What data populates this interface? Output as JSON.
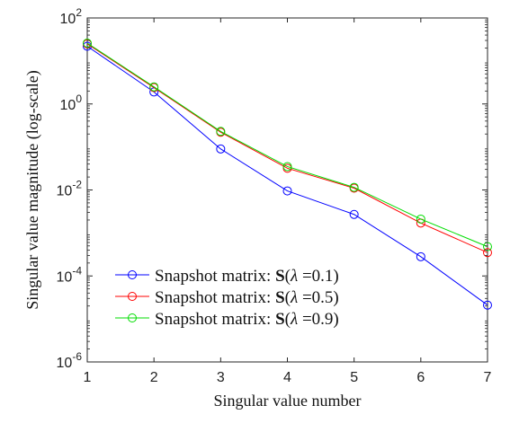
{
  "chart_data": {
    "type": "line",
    "xlabel": "Singular value number",
    "ylabel": "Singular value magnitude (log-scale)",
    "x": [
      1,
      2,
      3,
      4,
      5,
      6,
      7
    ],
    "xlim": [
      1,
      7
    ],
    "ylim": [
      1e-06,
      100
    ],
    "yscale": "log",
    "x_ticks": [
      "1",
      "2",
      "3",
      "4",
      "5",
      "6",
      "7"
    ],
    "y_ticks": [
      {
        "base": "10",
        "exp": "-6",
        "value": 1e-06
      },
      {
        "base": "10",
        "exp": "-4",
        "value": 0.0001
      },
      {
        "base": "10",
        "exp": "-2",
        "value": 0.01
      },
      {
        "base": "10",
        "exp": "0",
        "value": 1
      },
      {
        "base": "10",
        "exp": "2",
        "value": 100
      }
    ],
    "grid": false,
    "legend_position": "bottom-left",
    "series": [
      {
        "name": "Snapshot matrix: S(λ=0.1)",
        "legend_prefix": "Snapshot matrix: ",
        "legend_symbol": "S",
        "legend_lambda": "λ",
        "legend_value": "=0.1",
        "color": "#0000ff",
        "values": [
          22,
          1.9,
          0.09,
          0.0095,
          0.0027,
          0.00028,
          2.1e-05
        ]
      },
      {
        "name": "Snapshot matrix: S(λ=0.5)",
        "legend_prefix": "Snapshot matrix: ",
        "legend_symbol": "S",
        "legend_lambda": "λ",
        "legend_value": "=0.5",
        "color": "#ff0000",
        "values": [
          25,
          2.4,
          0.22,
          0.032,
          0.011,
          0.0017,
          0.00035
        ]
      },
      {
        "name": "Snapshot matrix: S(λ=0.9)",
        "legend_prefix": "Snapshot matrix: ",
        "legend_symbol": "S",
        "legend_lambda": "λ",
        "legend_value": "=0.9",
        "color": "#00dd00",
        "values": [
          26,
          2.5,
          0.23,
          0.035,
          0.0115,
          0.0021,
          0.00048
        ]
      }
    ]
  }
}
